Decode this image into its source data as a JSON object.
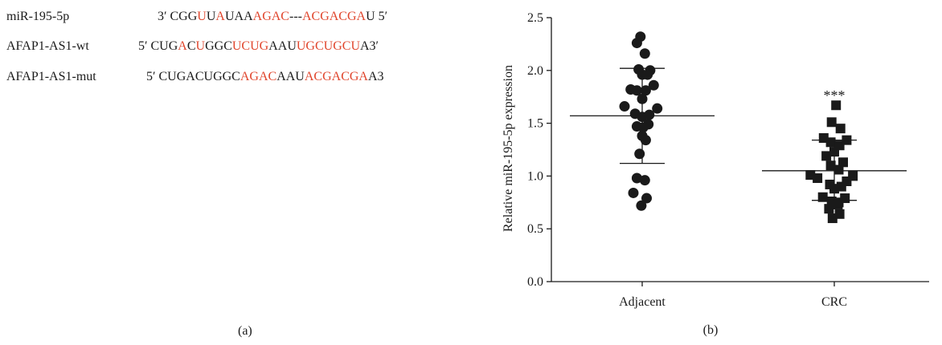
{
  "panel_a": {
    "caption": "(a)",
    "rows": [
      {
        "label": "miR-195-5p",
        "segments": [
          {
            "t": "3′ CGG",
            "h": false
          },
          {
            "t": "U",
            "h": true
          },
          {
            "t": "U",
            "h": false
          },
          {
            "t": "A",
            "h": true
          },
          {
            "t": "UAA",
            "h": false
          },
          {
            "t": "AGAC",
            "h": true
          },
          {
            "t": "---",
            "h": false
          },
          {
            "t": "ACGACGA",
            "h": true
          },
          {
            "t": "U 5′",
            "h": false
          }
        ]
      },
      {
        "label": "AFAP1-AS1-wt",
        "segments": [
          {
            "t": "5′ CUG",
            "h": false
          },
          {
            "t": "A",
            "h": true
          },
          {
            "t": "C",
            "h": false
          },
          {
            "t": "U",
            "h": true
          },
          {
            "t": "GGC",
            "h": false
          },
          {
            "t": "UCUG",
            "h": true
          },
          {
            "t": "AAU",
            "h": false
          },
          {
            "t": "UGCUGCU",
            "h": true
          },
          {
            "t": "A3′",
            "h": false
          }
        ]
      },
      {
        "label": "AFAP1-AS1-mut",
        "segments": [
          {
            "t": "5′ CUGACUGGC",
            "h": false
          },
          {
            "t": "AGAC",
            "h": true
          },
          {
            "t": "AAU",
            "h": false
          },
          {
            "t": "ACGACGA",
            "h": true
          },
          {
            "t": "A3",
            "h": false
          }
        ]
      }
    ],
    "highlight_color": "#e0452c"
  },
  "chart_data": {
    "type": "scatter",
    "caption": "(b)",
    "ylabel": "Relative miR-195-5p expression",
    "ylim": [
      0.0,
      2.5
    ],
    "yticks": [
      "0.0",
      "0.5",
      "1.0",
      "1.5",
      "2.0",
      "2.5"
    ],
    "categories": [
      "Adjacent",
      "CRC"
    ],
    "significance": {
      "category": "CRC",
      "label": "***"
    },
    "series": [
      {
        "category": "Adjacent",
        "marker": "circle",
        "mean": 1.57,
        "sd_upper": 2.02,
        "sd_lower": 1.12,
        "points": [
          [
            -0.02,
            2.32
          ],
          [
            -0.06,
            2.26
          ],
          [
            0.03,
            2.16
          ],
          [
            -0.04,
            2.01
          ],
          [
            0.09,
            2.0
          ],
          [
            0.0,
            1.96
          ],
          [
            0.06,
            1.96
          ],
          [
            -0.13,
            1.82
          ],
          [
            -0.06,
            1.81
          ],
          [
            0.13,
            1.86
          ],
          [
            0.04,
            1.81
          ],
          [
            -0.2,
            1.66
          ],
          [
            0.17,
            1.64
          ],
          [
            0.0,
            1.73
          ],
          [
            -0.08,
            1.59
          ],
          [
            0.08,
            1.58
          ],
          [
            0.0,
            1.56
          ],
          [
            -0.06,
            1.47
          ],
          [
            0.07,
            1.49
          ],
          [
            0.01,
            1.46
          ],
          [
            0.0,
            1.38
          ],
          [
            0.04,
            1.34
          ],
          [
            -0.03,
            1.21
          ],
          [
            -0.06,
            0.98
          ],
          [
            0.03,
            0.96
          ],
          [
            -0.1,
            0.84
          ],
          [
            0.05,
            0.79
          ],
          [
            -0.01,
            0.72
          ]
        ]
      },
      {
        "category": "CRC",
        "marker": "square",
        "mean": 1.05,
        "sd_upper": 1.34,
        "sd_lower": 0.77,
        "points": [
          [
            0.02,
            1.67
          ],
          [
            -0.03,
            1.51
          ],
          [
            0.07,
            1.45
          ],
          [
            -0.12,
            1.36
          ],
          [
            -0.04,
            1.32
          ],
          [
            0.14,
            1.34
          ],
          [
            0.06,
            1.29
          ],
          [
            -0.09,
            1.19
          ],
          [
            0.0,
            1.23
          ],
          [
            0.1,
            1.13
          ],
          [
            -0.04,
            1.1
          ],
          [
            0.05,
            1.06
          ],
          [
            -0.27,
            1.01
          ],
          [
            -0.19,
            0.98
          ],
          [
            0.21,
            1.0
          ],
          [
            0.14,
            0.95
          ],
          [
            -0.05,
            0.92
          ],
          [
            0.0,
            0.88
          ],
          [
            0.08,
            0.9
          ],
          [
            -0.13,
            0.8
          ],
          [
            -0.03,
            0.76
          ],
          [
            0.05,
            0.75
          ],
          [
            0.12,
            0.79
          ],
          [
            -0.06,
            0.69
          ],
          [
            0.04,
            0.73
          ],
          [
            0.06,
            0.64
          ],
          [
            -0.02,
            0.6
          ]
        ]
      }
    ]
  }
}
